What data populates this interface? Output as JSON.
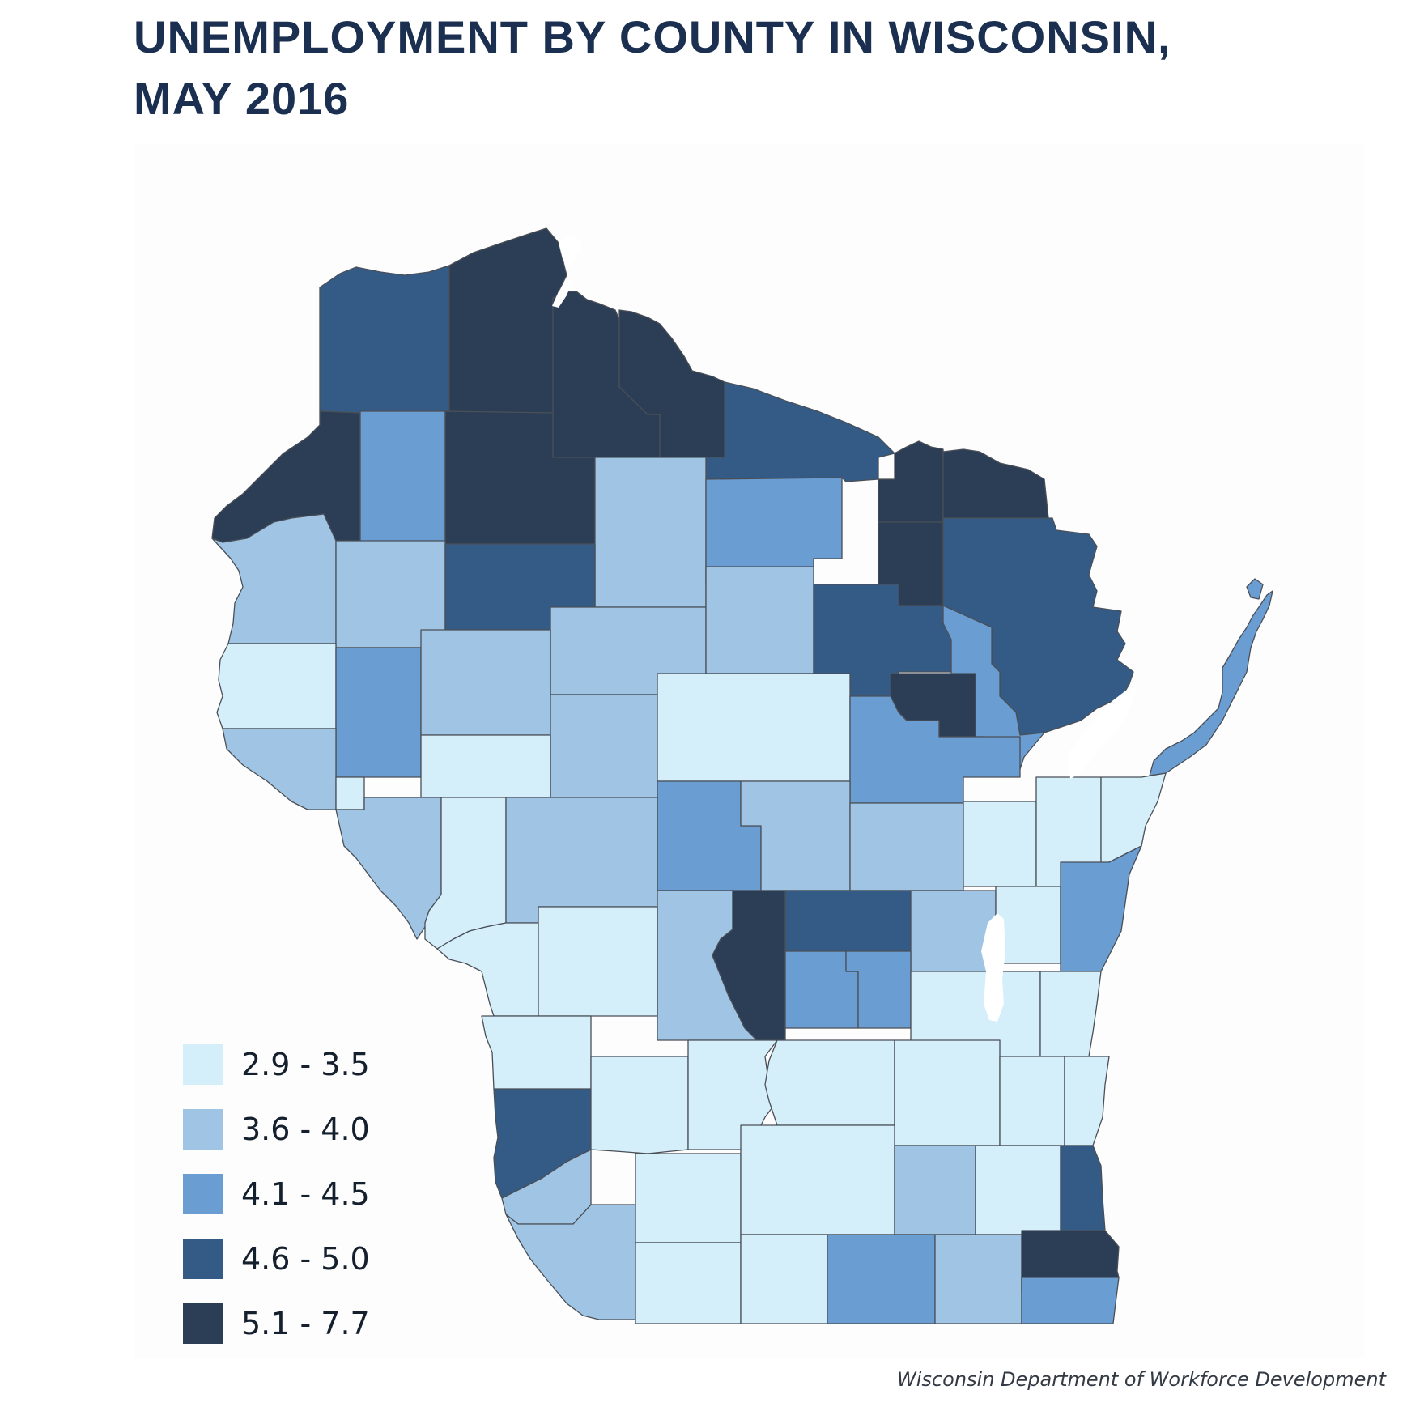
{
  "title": {
    "line1": "UNEMPLOYMENT BY COUNTY IN WISCONSIN,",
    "line2": "MAY 2016"
  },
  "legend": [
    {
      "label": "2.9 - 3.5",
      "color": "#d4eefa"
    },
    {
      "label": "3.6 - 4.0",
      "color": "#9fc4e4"
    },
    {
      "label": "4.1 - 4.5",
      "color": "#6a9ed3"
    },
    {
      "label": "4.6 - 5.0",
      "color": "#335b85"
    },
    {
      "label": "5.1 - 7.7",
      "color": "#2b3e55"
    }
  ],
  "source": "Wisconsin Department of Workforce Development"
}
